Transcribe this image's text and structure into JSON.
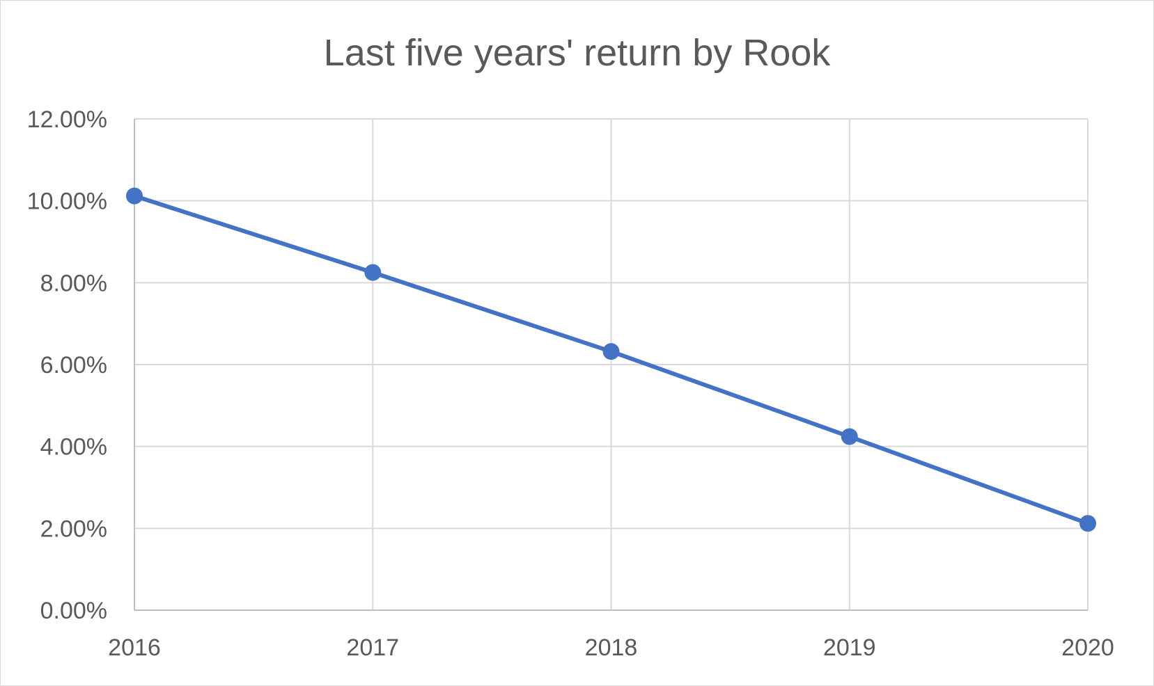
{
  "chart_data": {
    "type": "line",
    "title": "Last five years' return by Rook",
    "xlabel": "",
    "ylabel": "",
    "categories": [
      "2016",
      "2017",
      "2018",
      "2019",
      "2020"
    ],
    "series": [
      {
        "values": [
          10.12,
          8.25,
          6.32,
          4.24,
          2.12
        ],
        "color": "#4472c4",
        "marker": "circle"
      }
    ],
    "ylim": [
      0,
      12
    ],
    "y_ticks": [
      0,
      2,
      4,
      6,
      8,
      10,
      12
    ],
    "y_tick_labels": [
      "0.00%",
      "2.00%",
      "4.00%",
      "6.00%",
      "8.00%",
      "10.00%",
      "12.00%"
    ],
    "grid": true,
    "legend": "none"
  }
}
